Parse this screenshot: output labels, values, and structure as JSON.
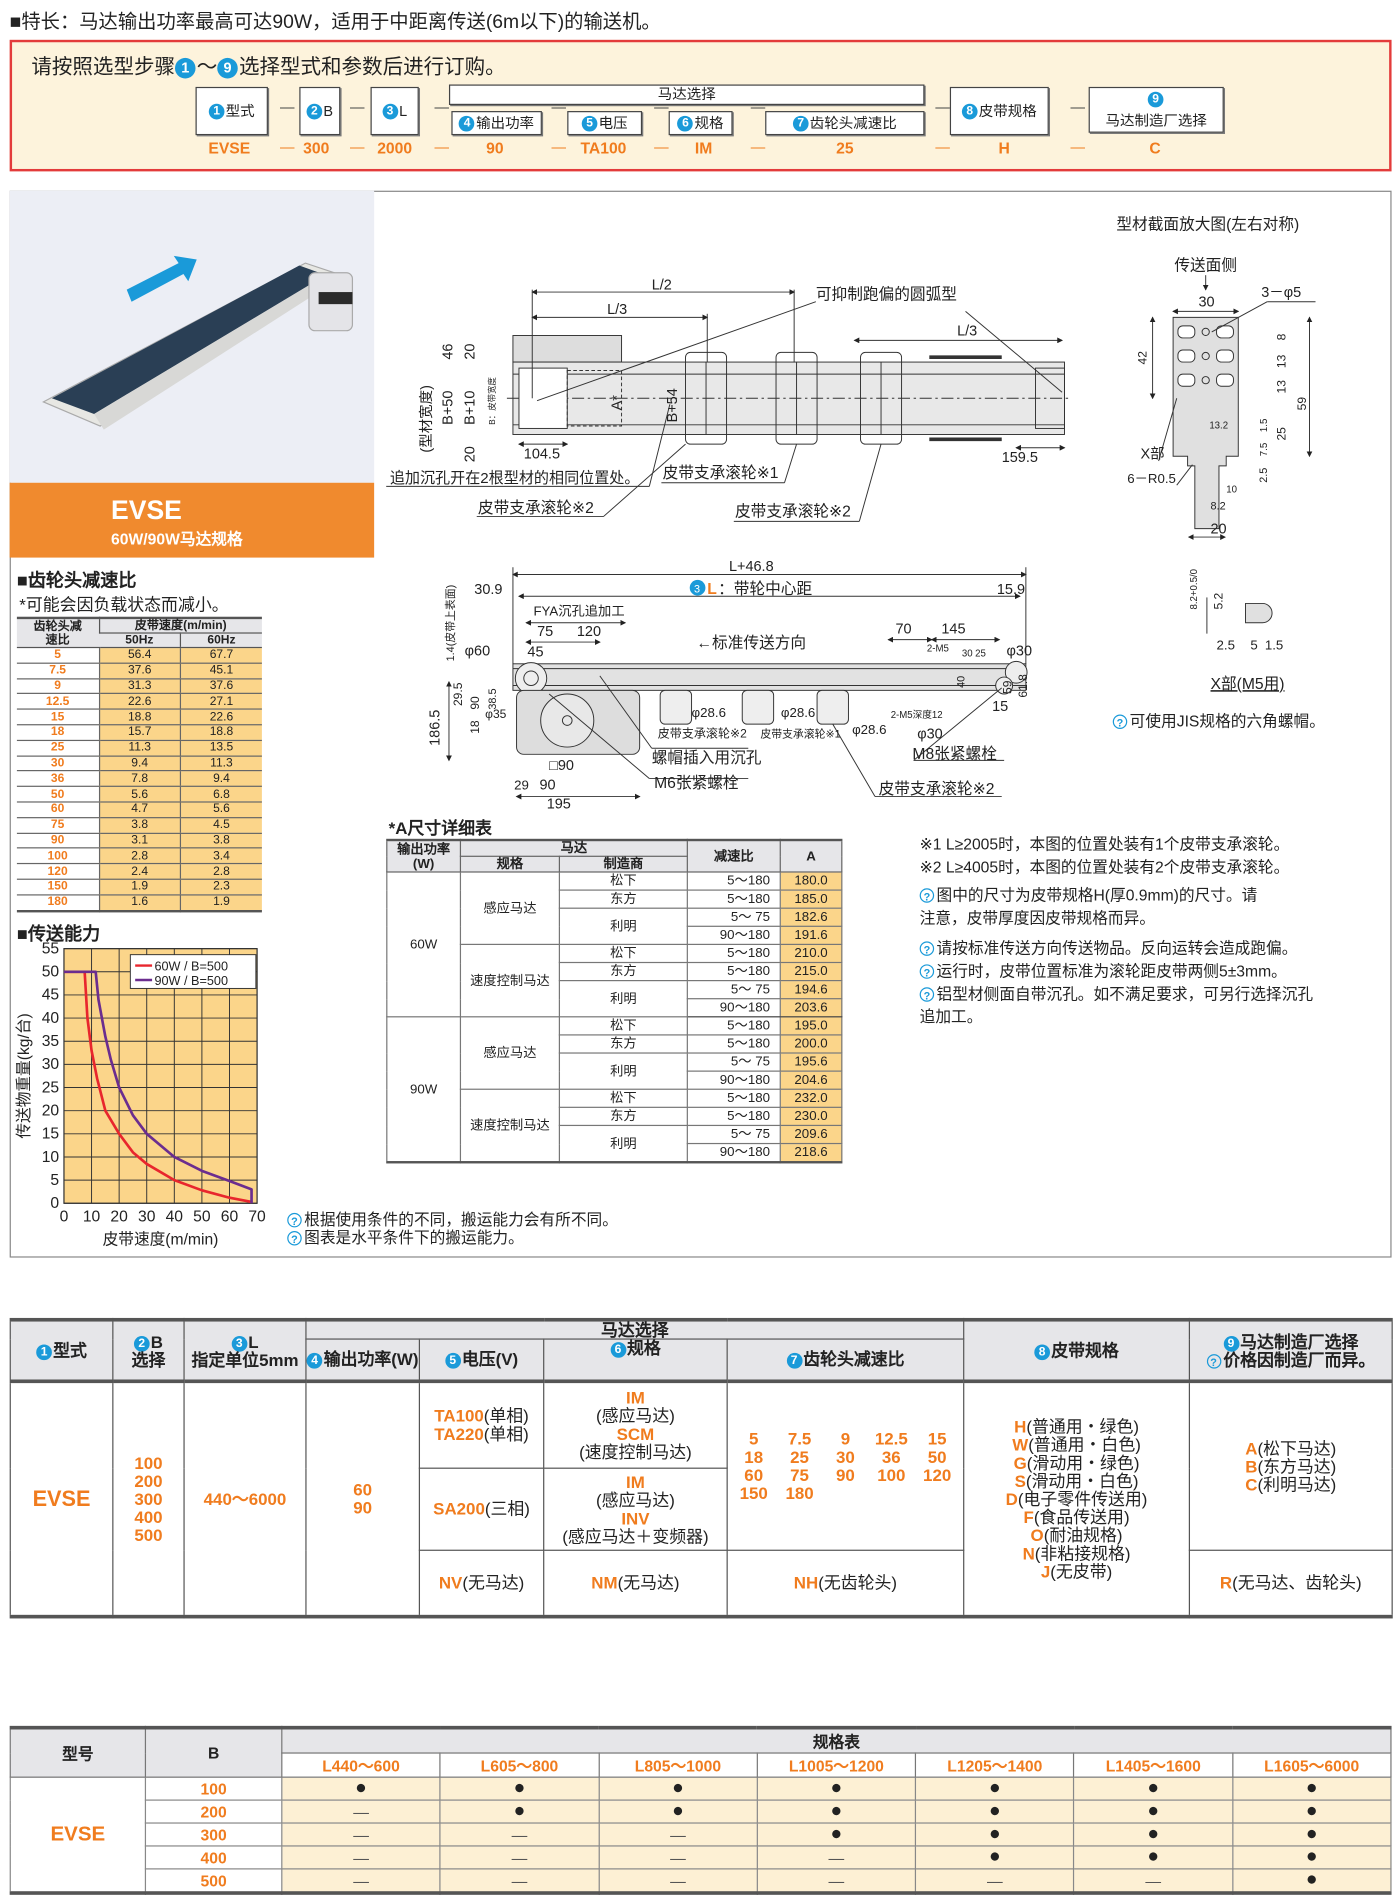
{
  "feature": "■特长：马达输出功率最高可达90W，适用于中距离传送(6m以下)的输送机。",
  "order": {
    "instruction_pre": "请按照选型步骤",
    "step_from": "1",
    "tilde": "～",
    "step_to": "9",
    "instruction_post": "选择型式和参数后进行订购。",
    "motor_group": "马达选择",
    "dash": "—",
    "steps": [
      {
        "n": "1",
        "label": "型式",
        "value": "EVSE"
      },
      {
        "n": "2",
        "label": "B",
        "value": "300"
      },
      {
        "n": "3",
        "label": "L",
        "value": "2000"
      },
      {
        "n": "4",
        "label": "输出功率",
        "value": "90"
      },
      {
        "n": "5",
        "label": "电压",
        "value": "TA100"
      },
      {
        "n": "6",
        "label": "规格",
        "value": "IM"
      },
      {
        "n": "7",
        "label": "齿轮头减速比",
        "value": "25"
      },
      {
        "n": "8",
        "label": "皮带规格",
        "value": "H"
      },
      {
        "n": "9",
        "label": "马达制造厂选择",
        "value": "C"
      }
    ]
  },
  "product": {
    "code": "EVSE",
    "subtitle": "60W/90W马达规格",
    "arrow_color": "#1a9ad9",
    "band_color": "#f08a2e"
  },
  "gear": {
    "title": "■齿轮头减速比",
    "note": "*可能会因负载状态而减小。",
    "h_ratio": "齿轮头减速比",
    "h_speed": "皮带速度(m/min)",
    "h_50": "50Hz",
    "h_60": "60Hz",
    "rows": [
      [
        "5",
        "56.4",
        "67.7"
      ],
      [
        "7.5",
        "37.6",
        "45.1"
      ],
      [
        "9",
        "31.3",
        "37.6"
      ],
      [
        "12.5",
        "22.6",
        "27.1"
      ],
      [
        "15",
        "18.8",
        "22.6"
      ],
      [
        "18",
        "15.7",
        "18.8"
      ],
      [
        "25",
        "11.3",
        "13.5"
      ],
      [
        "30",
        "9.4",
        "11.3"
      ],
      [
        "36",
        "7.8",
        "9.4"
      ],
      [
        "50",
        "5.6",
        "6.8"
      ],
      [
        "60",
        "4.7",
        "5.6"
      ],
      [
        "75",
        "3.8",
        "4.5"
      ],
      [
        "90",
        "3.1",
        "3.8"
      ],
      [
        "100",
        "2.8",
        "3.4"
      ],
      [
        "120",
        "2.4",
        "2.8"
      ],
      [
        "150",
        "1.9",
        "2.3"
      ],
      [
        "180",
        "1.6",
        "1.9"
      ]
    ]
  },
  "chart_data": {
    "type": "line",
    "title": "■传送能力",
    "xlabel": "皮带速度(m/min)",
    "ylabel": "传送物重量(kg/台)",
    "xlim": [
      0,
      70
    ],
    "ylim": [
      0,
      55
    ],
    "xticks": [
      0,
      10,
      20,
      30,
      40,
      50,
      60,
      70
    ],
    "yticks": [
      0,
      5,
      10,
      15,
      20,
      25,
      30,
      35,
      40,
      45,
      50,
      55
    ],
    "grid": true,
    "background": "#fbd58a",
    "legend": "top-right",
    "series": [
      {
        "name": "60W / B=500",
        "color": "#e8262d",
        "x": [
          0,
          7.5,
          8.5,
          10,
          12,
          15,
          20,
          25,
          30,
          40,
          50,
          60,
          68
        ],
        "y": [
          50,
          50,
          40,
          33,
          27,
          20,
          15,
          11,
          8.5,
          5,
          2.8,
          1.2,
          0.3
        ]
      },
      {
        "name": "90W / B=500",
        "color": "#6b2d8f",
        "x": [
          0,
          11.5,
          12.5,
          15,
          17,
          20,
          25,
          30,
          40,
          50,
          60,
          68,
          68
        ],
        "y": [
          50,
          50,
          44,
          36,
          31,
          25,
          19,
          15,
          10,
          7,
          4.8,
          3,
          0
        ]
      }
    ]
  },
  "a_table": {
    "title": "*A尺寸详细表",
    "h_power": "输出功率(W)",
    "h_motor": "马达",
    "h_spec": "规格",
    "h_maker": "制造商",
    "h_ratio": "减速比",
    "h_a": "A",
    "powers": [
      "60W",
      "90W"
    ],
    "specs": [
      "感应马达",
      "速度控制马达"
    ],
    "makers": [
      "松下",
      "东方",
      "利明"
    ],
    "rows": [
      [
        "5～180",
        "180.0"
      ],
      [
        "5～180",
        "185.0"
      ],
      [
        "5～ 75",
        "182.6"
      ],
      [
        "90～180",
        "191.6"
      ],
      [
        "5～180",
        "210.0"
      ],
      [
        "5～180",
        "215.0"
      ],
      [
        "5～ 75",
        "194.6"
      ],
      [
        "90～180",
        "203.6"
      ],
      [
        "5～180",
        "195.0"
      ],
      [
        "5～180",
        "200.0"
      ],
      [
        "5～ 75",
        "195.6"
      ],
      [
        "90～180",
        "204.6"
      ],
      [
        "5～180",
        "232.0"
      ],
      [
        "5～180",
        "230.0"
      ],
      [
        "5～ 75",
        "209.6"
      ],
      [
        "90～180",
        "218.6"
      ]
    ]
  },
  "notes": {
    "n1": "※1 L≥2005时，本图的位置处装有1个皮带支承滚轮。",
    "n2": "※2 L≥4005时，本图的位置处装有2个皮带支承滚轮。",
    "tips": [
      "图中的尺寸为皮带规格H(厚0.9mm)的尺寸。请\n注意，皮带厚度因皮带规格而异。",
      "请按标准传送方向传送物品。反向运转会造成跑偏。",
      "运行时，皮带位置标准为滚轮距皮带两侧5±3mm。",
      "铝型材侧面自带沉孔。如不满足要求，可另行选择沉孔\n追加工。"
    ],
    "chart_tips": [
      "根据使用条件的不同，搬运能力会有所不同。",
      "图表是水平条件下的搬运能力。"
    ]
  },
  "drawing": {
    "top_view": [
      "L/2",
      "L/3",
      "可抑制跑偏的圆弧型",
      "L/3",
      "46",
      "20",
      "(型材宽度)",
      "B+50",
      "B+10",
      "A*",
      "B+54",
      "20",
      "104.5",
      "159.5",
      "追加沉孔开在2根型材的相同位置处。",
      "皮带支承滚轮※1",
      "皮带支承滚轮※2",
      "皮带支承滚轮※2",
      "B：皮带宽度"
    ],
    "side_view": [
      "L+46.8",
      "L",
      "：带轮中心距",
      "30.9",
      "15.9",
      "FYA沉孔追加工",
      "75",
      "120",
      "←标准传送方向",
      "70",
      "145",
      "φ60",
      "45",
      "φ30",
      "2-M5",
      "30",
      "25",
      "1.4(皮带上表面)",
      "186.5",
      "29.5",
      "90",
      "18",
      "38.5",
      "φ35",
      "φ28.6",
      "φ28.6",
      "φ28.6",
      "皮带支承滚轮※2",
      "皮带支承滚轮※1",
      "2-M5深度12",
      "φ30",
      "螺帽插入用沉孔",
      "M8张紧螺栓",
      "M6张紧螺栓",
      "皮带支承滚轮※2",
      "□90",
      "29",
      "90",
      "195",
      "59",
      "61.8",
      "15",
      "40"
    ],
    "cross_section": [
      "型材截面放大图(左右对称)",
      "传送面侧",
      "30",
      "3－φ5",
      "8",
      "13",
      "13",
      "59",
      "42",
      "25",
      "1.5",
      "13.2",
      "7.5",
      "X部",
      "6－R0.5",
      "2.5",
      "10",
      "8.2",
      "20",
      "8.2+0.5/0",
      "5.2",
      "2.5",
      "5",
      "1.5",
      "X部(M5用)",
      "可使用JIS规格的六角螺帽。"
    ]
  },
  "selection": {
    "h_type": "型式",
    "h_b": "B",
    "h_b2": "选择",
    "h_l": "L",
    "h_l2": "指定单位5mm",
    "h_motor": "马达选择",
    "h_power": "输出功率(W)",
    "h_volt": "电压(V)",
    "h_spec": "规格",
    "h_gear": "齿轮头减速比",
    "h_belt": "皮带规格",
    "h_maker": "马达制造厂选择",
    "h_maker_tip": "价格因制造厂而异。",
    "type": "EVSE",
    "b_values": [
      "100",
      "200",
      "300",
      "400",
      "500"
    ],
    "l_range": "440～6000",
    "powers": [
      "60",
      "90"
    ],
    "volt_rows": [
      [
        {
          "code": "TA100",
          "desc": "(单相)"
        },
        {
          "code": "TA220",
          "desc": "(单相)"
        }
      ],
      [
        {
          "code": "SA200",
          "desc": "(三相)"
        }
      ],
      [
        {
          "code": "NV",
          "desc": "(无马达)"
        }
      ]
    ],
    "spec_rows": [
      [
        {
          "code": "IM",
          "desc": "(感应马达)"
        },
        {
          "code": "SCM",
          "desc": "(速度控制马达)"
        }
      ],
      [
        {
          "code": "IM",
          "desc": "(感应马达)"
        },
        {
          "code": "INV",
          "desc": "(感应马达＋变频器)"
        }
      ],
      [
        {
          "code": "NM",
          "desc": "(无马达)"
        }
      ]
    ],
    "gear_ratios": [
      [
        "5",
        "7.5",
        "9",
        "12.5",
        "15"
      ],
      [
        "18",
        "25",
        "30",
        "36",
        "50"
      ],
      [
        "60",
        "75",
        "90",
        "100",
        "120"
      ],
      [
        "150",
        "180"
      ]
    ],
    "gear_none": {
      "code": "NH",
      "desc": "(无齿轮头)"
    },
    "belts": [
      {
        "code": "H",
        "desc": "(普通用・绿色)"
      },
      {
        "code": "W",
        "desc": "(普通用・白色)"
      },
      {
        "code": "G",
        "desc": "(滑动用・绿色)"
      },
      {
        "code": "S",
        "desc": "(滑动用・白色)"
      },
      {
        "code": "D",
        "desc": "(电子零件传送用)"
      },
      {
        "code": "F",
        "desc": "(食品传送用)"
      },
      {
        "code": "O",
        "desc": "(耐油规格)"
      },
      {
        "code": "N",
        "desc": "(非粘接规格)"
      },
      {
        "code": "J",
        "desc": "(无皮带)"
      }
    ],
    "makers": [
      {
        "code": "A",
        "desc": "(松下马达)"
      },
      {
        "code": "B",
        "desc": "(东方马达)"
      },
      {
        "code": "C",
        "desc": "(利明马达)"
      }
    ],
    "maker_none": {
      "code": "R",
      "desc": "(无马达、齿轮头)"
    }
  },
  "spec_table": {
    "h_model": "型号",
    "h_b": "B",
    "h_group": "规格表",
    "model": "EVSE",
    "ranges": [
      "L440～600",
      "L605～800",
      "L805～1000",
      "L1005～1200",
      "L1205～1400",
      "L1405～1600",
      "L1605～6000"
    ],
    "available_mark": "●",
    "unavailable_mark": "—",
    "rows": [
      {
        "b": "100",
        "avail": [
          1,
          1,
          1,
          1,
          1,
          1,
          1
        ]
      },
      {
        "b": "200",
        "avail": [
          0,
          1,
          1,
          1,
          1,
          1,
          1
        ]
      },
      {
        "b": "300",
        "avail": [
          0,
          0,
          0,
          1,
          1,
          1,
          1
        ]
      },
      {
        "b": "400",
        "avail": [
          0,
          0,
          0,
          0,
          1,
          1,
          1
        ]
      },
      {
        "b": "500",
        "avail": [
          0,
          0,
          0,
          0,
          0,
          0,
          1
        ]
      }
    ]
  }
}
